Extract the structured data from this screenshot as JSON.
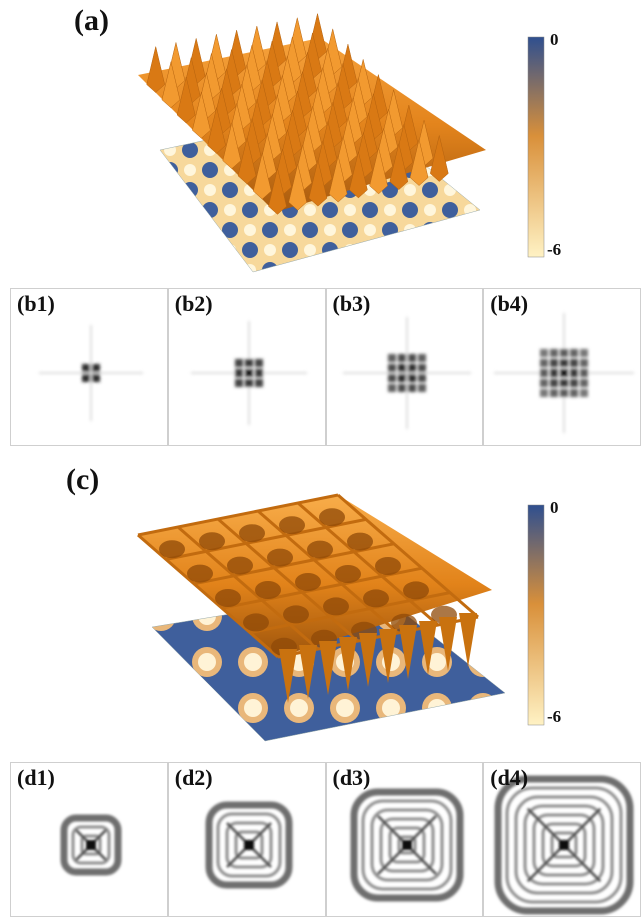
{
  "figure": {
    "panel_a": {
      "label": "(a)",
      "colorbar": {
        "max_label": "0",
        "min_label": "-6"
      }
    },
    "panel_b": {
      "subpanels": [
        {
          "label": "(b1)"
        },
        {
          "label": "(b2)"
        },
        {
          "label": "(b3)"
        },
        {
          "label": "(b4)"
        }
      ]
    },
    "panel_c": {
      "label": "(c)",
      "colorbar": {
        "max_label": "0",
        "min_label": "-6"
      }
    },
    "panel_d": {
      "subpanels": [
        {
          "label": "(d1)"
        },
        {
          "label": "(d2)"
        },
        {
          "label": "(d3)"
        },
        {
          "label": "(d4)"
        }
      ]
    },
    "colors": {
      "cbar_top": "#2f4f8f",
      "cbar_mid": "#d9903a",
      "cbar_bottom": "#fff2c4",
      "surface": "#e58a1f",
      "floor_dark": "#3d5c99",
      "floor_light": "#fbe2a8"
    }
  }
}
